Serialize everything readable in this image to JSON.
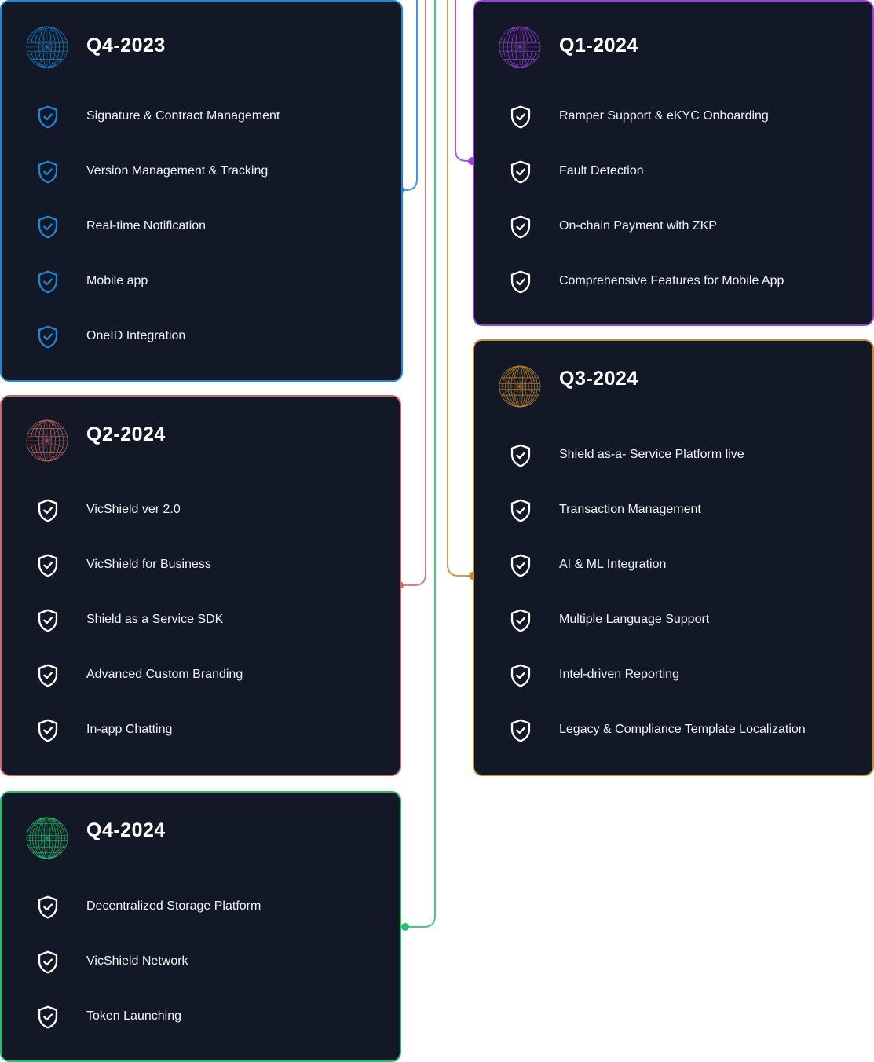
{
  "colors": {
    "card_bg": "#121826",
    "q4_2023": "#1d86d8",
    "q1_2024": "#9b3fdc",
    "q2_2024": "#c86a6a",
    "q3_2024": "#c88a34",
    "q4_2024": "#25c16a"
  },
  "roadmap": [
    {
      "key": "q4_2023",
      "title": "Q4-2023",
      "icon": "globe-icon",
      "shield_color": "#1d86d8",
      "items": [
        "Signature & Contract Management",
        "Version Management & Tracking",
        "Real-time Notification",
        "Mobile app",
        "OneID Integration"
      ]
    },
    {
      "key": "q1_2024",
      "title": "Q1-2024",
      "icon": "globe-icon",
      "shield_color": "#ffffff",
      "items": [
        "Ramper Support & eKYC Onboarding",
        "Fault Detection",
        "On-chain Payment with ZKP",
        "Comprehensive Features for Mobile App"
      ]
    },
    {
      "key": "q2_2024",
      "title": "Q2-2024",
      "icon": "globe-icon",
      "shield_color": "#ffffff",
      "items": [
        "VicShield ver 2.0",
        "VicShield for Business",
        "Shield as a Service SDK",
        "Advanced Custom Branding",
        "In-app Chatting"
      ]
    },
    {
      "key": "q3_2024",
      "title": "Q3-2024",
      "icon": "globe-icon",
      "shield_color": "#ffffff",
      "items": [
        "Shield as-a- Service Platform live",
        "Transaction Management",
        "AI & ML Integration",
        "Multiple Language Support",
        "Intel-driven Reporting",
        "Legacy & Compliance Template Localization"
      ]
    },
    {
      "key": "q4_2024",
      "title": "Q4-2024",
      "icon": "globe-icon",
      "shield_color": "#ffffff",
      "items": [
        "Decentralized Storage Platform",
        "VicShield Network",
        "Token Launching"
      ]
    }
  ]
}
